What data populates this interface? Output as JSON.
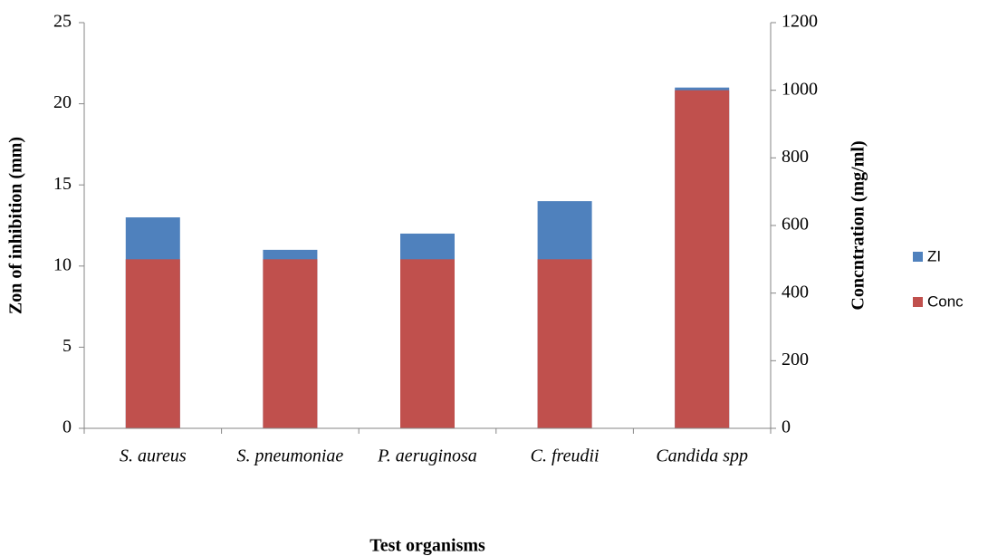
{
  "chart_data": {
    "type": "bar",
    "x_label": "Test organisms",
    "y_label": "Zon of inhibition (mm)",
    "y2_label": "Concntration (mg/ml)",
    "categories": [
      "S. aureus",
      "S. pneumoniae",
      "P. aeruginosa",
      "C. freudii",
      "Candida spp"
    ],
    "series": [
      {
        "name": "ZI",
        "color": "#4f81bd",
        "values": [
          13,
          11,
          12,
          14,
          21
        ]
      },
      {
        "name": "Conc",
        "color": "#c0504d",
        "values": [
          500,
          500,
          500,
          500,
          1000
        ],
        "axis": "y2"
      }
    ],
    "ylim": [
      0,
      25
    ],
    "yticks": [
      0,
      5,
      10,
      15,
      20,
      25
    ],
    "y2lim": [
      0,
      1200
    ],
    "y2ticks": [
      0,
      200,
      400,
      600,
      800,
      1000,
      1200
    ],
    "legend": "right",
    "grid": false
  }
}
